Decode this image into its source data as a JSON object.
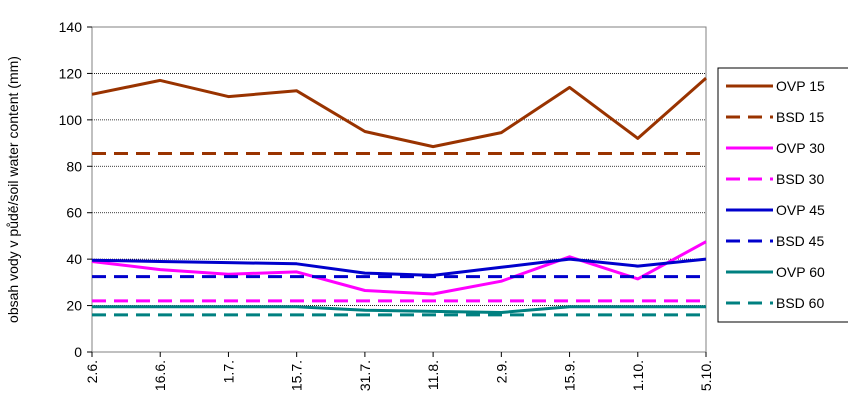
{
  "chart_data": {
    "type": "line",
    "ylabel": "obsah vody v půdě/soil water content (mm)",
    "xlabel": "",
    "ylim": [
      0,
      140
    ],
    "yticks": [
      0,
      20,
      40,
      60,
      80,
      100,
      120,
      140
    ],
    "categories": [
      "2.6.",
      "16.6.",
      "1.7.",
      "15.7.",
      "31.7.",
      "11.8.",
      "2.9.",
      "15.9.",
      "1.10.",
      "5.10."
    ],
    "grid": "horizontal",
    "legend_position": "right",
    "series": [
      {
        "name": "OVP 15",
        "color": "#993300",
        "dash": "solid",
        "values": [
          111,
          117,
          110,
          112.5,
          95,
          88.5,
          94.5,
          114,
          92,
          118
        ]
      },
      {
        "name": "BSD 15",
        "color": "#993300",
        "dash": "dashed",
        "values": [
          85.5,
          85.5,
          85.5,
          85.5,
          85.5,
          85.5,
          85.5,
          85.5,
          85.5,
          85.5
        ]
      },
      {
        "name": "OVP 30",
        "color": "#ff00ff",
        "dash": "solid",
        "values": [
          39,
          35.5,
          33.5,
          34.5,
          26.5,
          25,
          30.5,
          41,
          31.5,
          47.5
        ]
      },
      {
        "name": "BSD 30",
        "color": "#ff00ff",
        "dash": "dashed",
        "values": [
          22,
          22,
          22,
          22,
          22,
          22,
          22,
          22,
          22,
          22
        ]
      },
      {
        "name": "OVP 45",
        "color": "#0000cc",
        "dash": "solid",
        "values": [
          39.5,
          39,
          38.5,
          38,
          34,
          33,
          36.5,
          40,
          37,
          40
        ]
      },
      {
        "name": "BSD 45",
        "color": "#0000cc",
        "dash": "dashed",
        "values": [
          32.5,
          32.5,
          32.5,
          32.5,
          32.5,
          32.5,
          32.5,
          32.5,
          32.5,
          32.5
        ]
      },
      {
        "name": "OVP 60",
        "color": "#008080",
        "dash": "solid",
        "values": [
          19.5,
          19.5,
          19.5,
          19.5,
          18,
          17.5,
          17,
          19.5,
          19.5,
          19.5
        ]
      },
      {
        "name": "BSD 60",
        "color": "#008080",
        "dash": "dashed",
        "values": [
          16,
          16,
          16,
          16,
          16,
          16,
          16,
          16,
          16,
          16
        ]
      }
    ]
  }
}
